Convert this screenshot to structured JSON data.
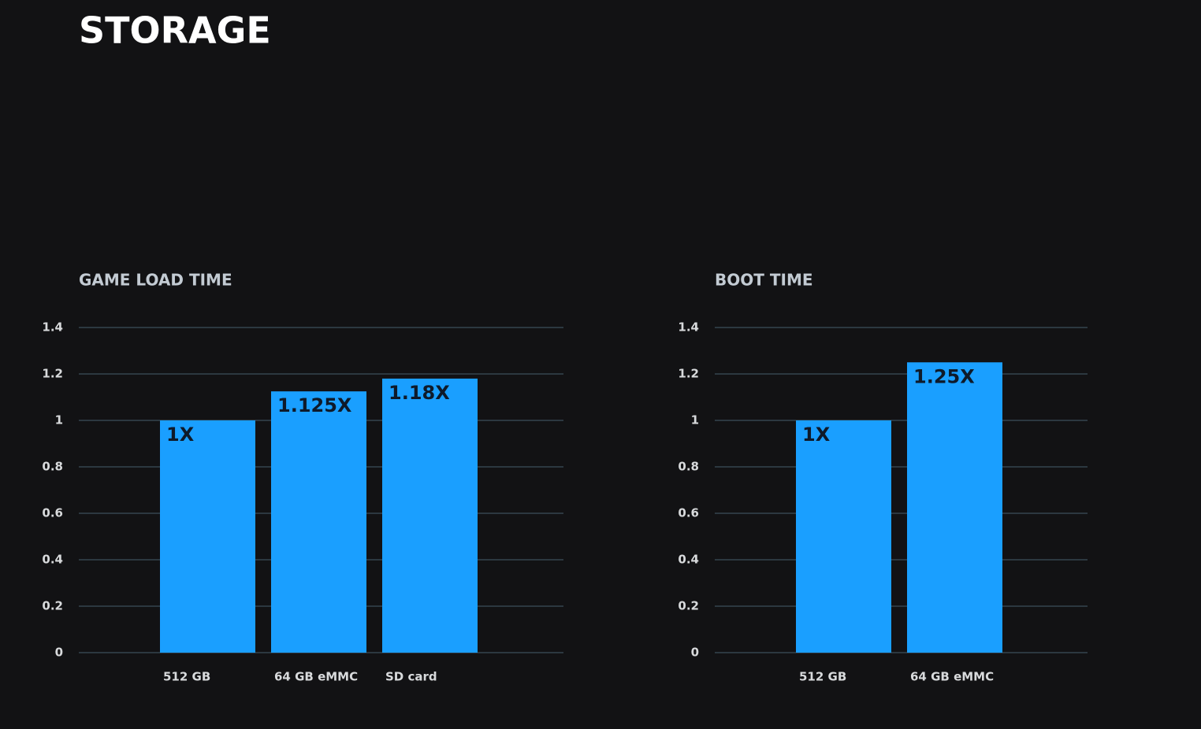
{
  "title": "STORAGE",
  "chart_data": [
    {
      "type": "bar",
      "title": "GAME LOAD TIME",
      "categories": [
        "512 GB",
        "64 GB eMMC",
        "SD card"
      ],
      "values": [
        1,
        1.125,
        1.18
      ],
      "value_labels": [
        "1X",
        "1.125X",
        "1.18X"
      ],
      "color": "#1a9fff",
      "ylim": [
        0,
        1.4
      ],
      "yticks": [
        0,
        0.2,
        0.4,
        0.6,
        0.8,
        1,
        1.2,
        1.4
      ],
      "grid": true
    },
    {
      "type": "bar",
      "title": "BOOT TIME",
      "categories": [
        "512 GB",
        "64 GB eMMC"
      ],
      "values": [
        1,
        1.25
      ],
      "value_labels": [
        "1X",
        "1.25X"
      ],
      "color": "#1a9fff",
      "ylim": [
        0,
        1.4
      ],
      "yticks": [
        0,
        0.2,
        0.4,
        0.6,
        0.8,
        1,
        1.2,
        1.4
      ],
      "grid": true
    }
  ]
}
